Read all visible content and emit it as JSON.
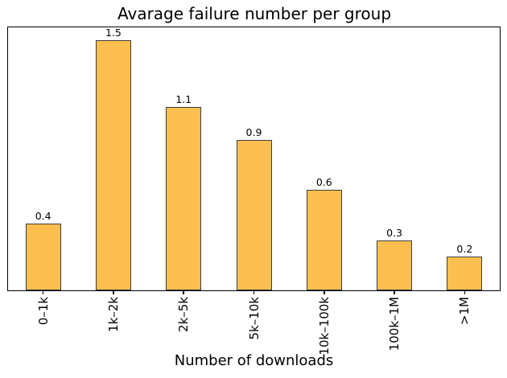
{
  "figure": {
    "background": "#ffffff"
  },
  "chart_data": {
    "type": "bar",
    "title": "Avarage failure number per group",
    "xlabel": "Number of downloads",
    "ylabel": "",
    "categories": [
      "0–1k",
      "1k–2k",
      "2k–5k",
      "5k–10k",
      "10k–100k",
      "100k–1M",
      ">1M"
    ],
    "values": [
      0.4,
      1.5,
      1.1,
      0.9,
      0.6,
      0.3,
      0.2
    ],
    "bar_labels": [
      "0.4",
      "1.5",
      "1.1",
      "0.9",
      "0.6",
      "0.3",
      "0.2"
    ],
    "ylim": [
      0,
      1.575
    ],
    "grid": false,
    "legend": null,
    "y_axis_ticks_visible": false,
    "x_tick_rotation_deg": 90,
    "bar_color": "#FCBF4F",
    "bar_edge_color": "#3d3d3d",
    "spine_color": "#000000"
  }
}
